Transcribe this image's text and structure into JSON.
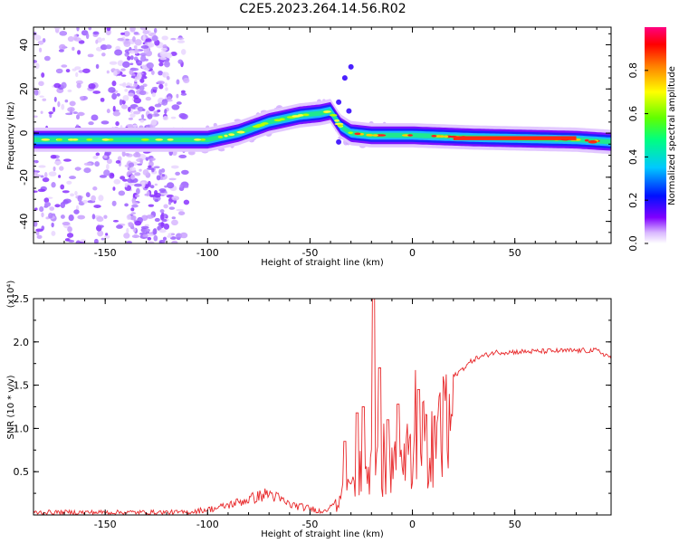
{
  "chart_data": [
    {
      "type": "heatmap",
      "title": "C2E5.2023.264.14.56.R02",
      "xlabel": "Height of straight line (km)",
      "ylabel": "Frequency (Hz)",
      "xlim": [
        -185,
        97
      ],
      "ylim": [
        -50,
        48
      ],
      "x_ticks": [
        -150,
        -100,
        -50,
        0,
        50
      ],
      "y_ticks": [
        -40,
        -20,
        0,
        20,
        40
      ],
      "colorbar": {
        "label": "Normalized spectral amplitude",
        "range": [
          0.0,
          1.0
        ],
        "ticks": [
          "0.0",
          "0.2",
          "0.4",
          "0.6",
          "0.8"
        ],
        "colors": [
          "#ffffff",
          "#d6b3ff",
          "#8000ff",
          "#0000ff",
          "#00c8ff",
          "#00ff80",
          "#80ff00",
          "#ffff00",
          "#ff8000",
          "#ff0000",
          "#ff0080"
        ]
      },
      "ridge": [
        {
          "x": -185,
          "f": -3
        },
        {
          "x": -100,
          "f": -3
        },
        {
          "x": -85,
          "f": 0
        },
        {
          "x": -70,
          "f": 5
        },
        {
          "x": -55,
          "f": 8
        },
        {
          "x": -45,
          "f": 9
        },
        {
          "x": -40,
          "f": 10
        },
        {
          "x": -35,
          "f": 3
        },
        {
          "x": -30,
          "f": 0
        },
        {
          "x": -20,
          "f": -1
        },
        {
          "x": 0,
          "f": -1
        },
        {
          "x": 30,
          "f": -2
        },
        {
          "x": 80,
          "f": -3
        },
        {
          "x": 97,
          "f": -4
        }
      ]
    },
    {
      "type": "line",
      "xlabel": "Height of straight line (km)",
      "ylabel": "SNR (10 * v/v)",
      "scale_label": "(x10⁴)",
      "xlim": [
        -185,
        97
      ],
      "ylim": [
        0,
        2.5
      ],
      "x_ticks": [
        -150,
        -100,
        -50,
        0,
        50
      ],
      "y_ticks": [
        "0.5",
        "1.0",
        "1.5",
        "2.0",
        "2.5"
      ],
      "line_color": "#e8282a",
      "trend": [
        {
          "x": -185,
          "y": 0.03
        },
        {
          "x": -110,
          "y": 0.03
        },
        {
          "x": -95,
          "y": 0.08
        },
        {
          "x": -80,
          "y": 0.18
        },
        {
          "x": -70,
          "y": 0.25
        },
        {
          "x": -60,
          "y": 0.12
        },
        {
          "x": -45,
          "y": 0.05
        },
        {
          "x": -38,
          "y": 0.15
        },
        {
          "x": -30,
          "y": 0.4
        },
        {
          "x": -20,
          "y": 0.7
        },
        {
          "x": -10,
          "y": 0.8
        },
        {
          "x": 0,
          "y": 1.05
        },
        {
          "x": 10,
          "y": 1.35
        },
        {
          "x": 20,
          "y": 1.6
        },
        {
          "x": 30,
          "y": 1.8
        },
        {
          "x": 40,
          "y": 1.88
        },
        {
          "x": 80,
          "y": 1.9
        },
        {
          "x": 90,
          "y": 1.9
        },
        {
          "x": 97,
          "y": 1.82
        }
      ],
      "spikes": [
        {
          "x": -33,
          "y": 0.85
        },
        {
          "x": -27,
          "y": 1.18
        },
        {
          "x": -24,
          "y": 1.25
        },
        {
          "x": -19,
          "y": 2.58
        },
        {
          "x": -16,
          "y": 1.7
        },
        {
          "x": -12,
          "y": 1.1
        },
        {
          "x": -7,
          "y": 1.28
        },
        {
          "x": 3,
          "y": 1.45
        }
      ]
    }
  ]
}
